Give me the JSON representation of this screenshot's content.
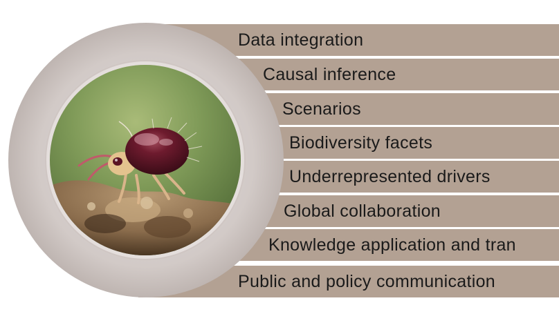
{
  "items": [
    {
      "label": "Data integration"
    },
    {
      "label": "Causal inference"
    },
    {
      "label": "Scenarios"
    },
    {
      "label": "Biodiversity facets"
    },
    {
      "label": "Underrepresented drivers"
    },
    {
      "label": "Global collaboration"
    },
    {
      "label": "Knowledge application and tran"
    },
    {
      "label": "Public and policy communication"
    }
  ],
  "colors": {
    "band": "#b3a193",
    "ring": "#c9c0bd",
    "text": "#1a1a1a",
    "photo_background": "#7f9a58",
    "mite_body": "#5a1424"
  },
  "image": {
    "subject": "mite-photo"
  }
}
